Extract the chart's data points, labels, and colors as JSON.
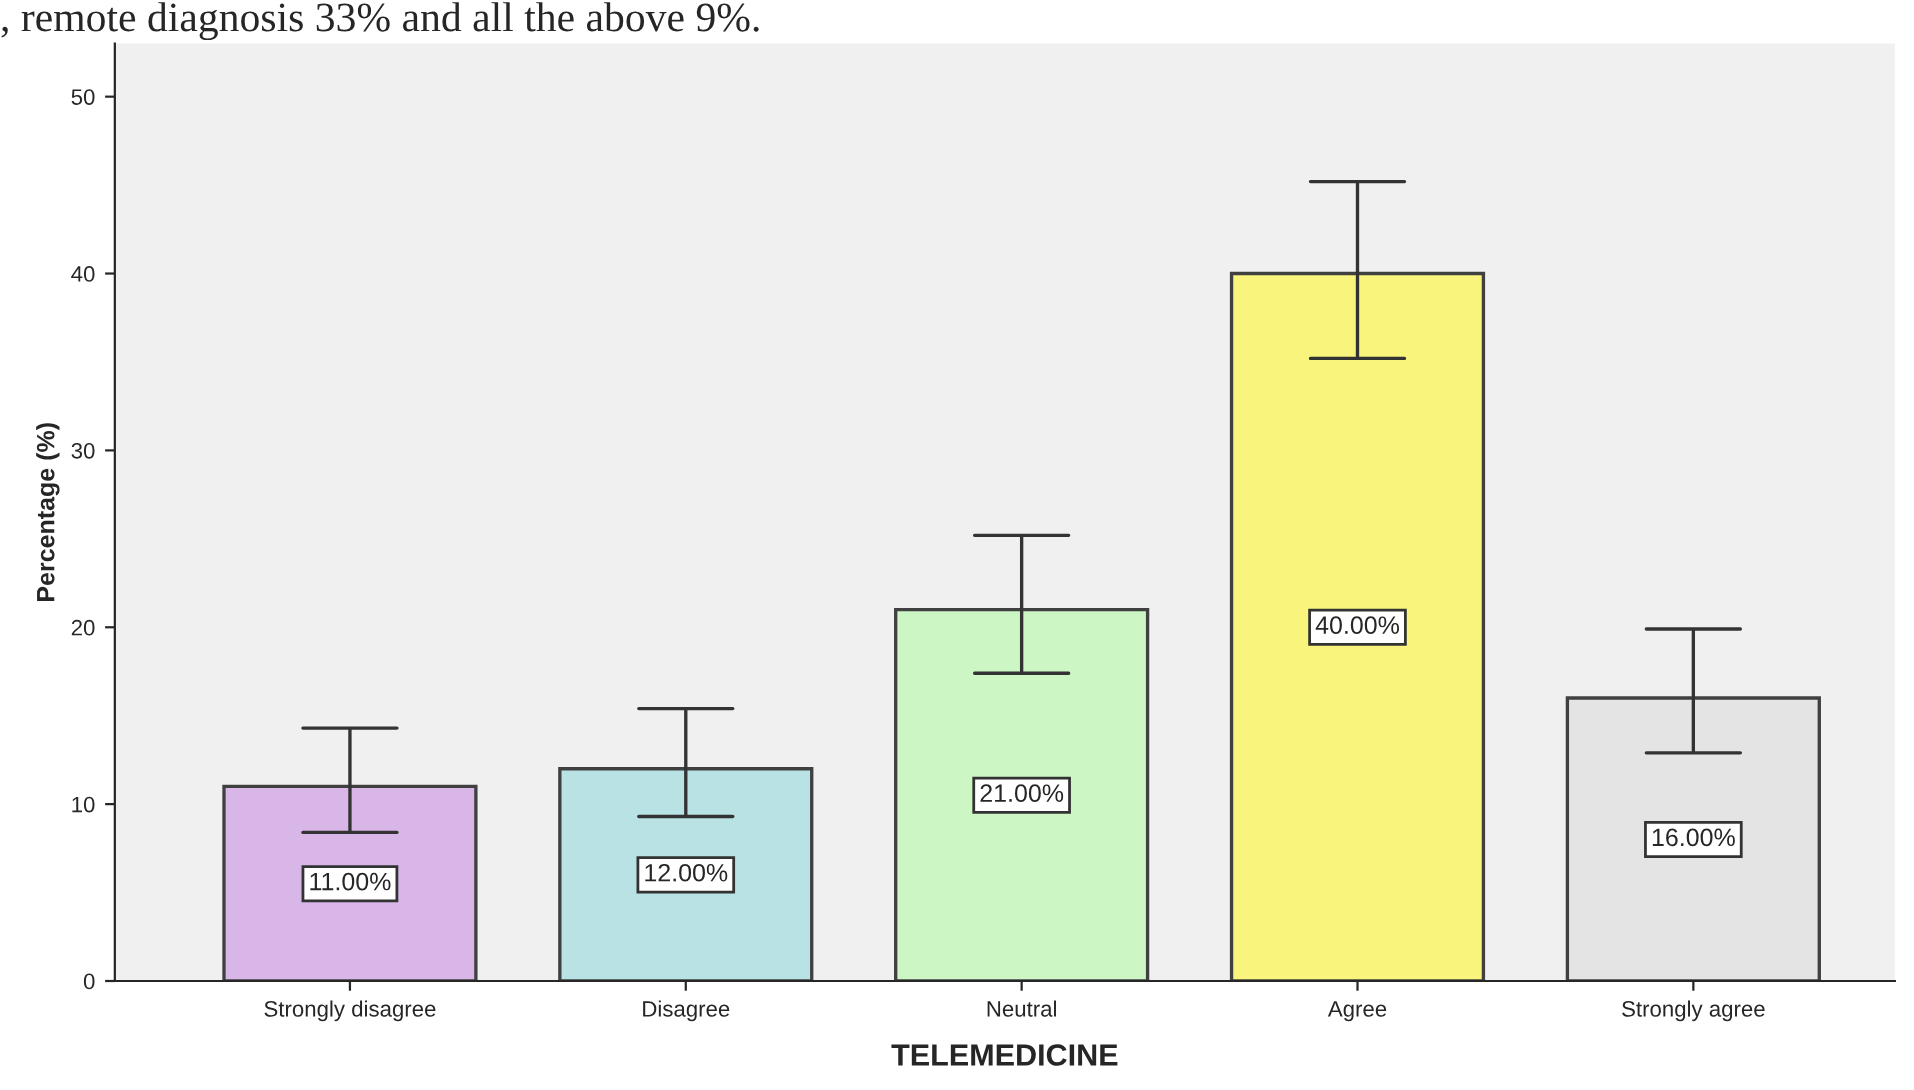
{
  "chart_data": {
    "type": "bar",
    "xlabel": "TELEMEDICINE",
    "ylabel": "Percentage (%)",
    "annotations": [
      ", remote diagnosis 33% and all the above 9%."
    ],
    "categories": [
      "Strongly disagree",
      "Disagree",
      "Neutral",
      "Agree",
      "Strongly agree"
    ],
    "values": [
      11,
      12,
      21,
      40,
      16
    ],
    "colors": [
      "#d8b6e8",
      "#b8e2e4",
      "#ccf6c4",
      "#f8f47c",
      "#e4e4e4"
    ],
    "errors": [
      [
        8.4,
        14.3
      ],
      [
        9.3,
        15.4
      ],
      [
        17.4,
        25.2
      ],
      [
        35.2,
        45.2
      ],
      [
        12.9,
        19.9
      ]
    ],
    "value_labels": [
      "11.00%",
      "12.00%",
      "21.00%",
      "40.00%",
      "16.00%"
    ],
    "ylim": [
      0,
      53
    ],
    "yticks": [
      0,
      10,
      20,
      30,
      40,
      50
    ],
    "grid": false,
    "legend": false
  }
}
